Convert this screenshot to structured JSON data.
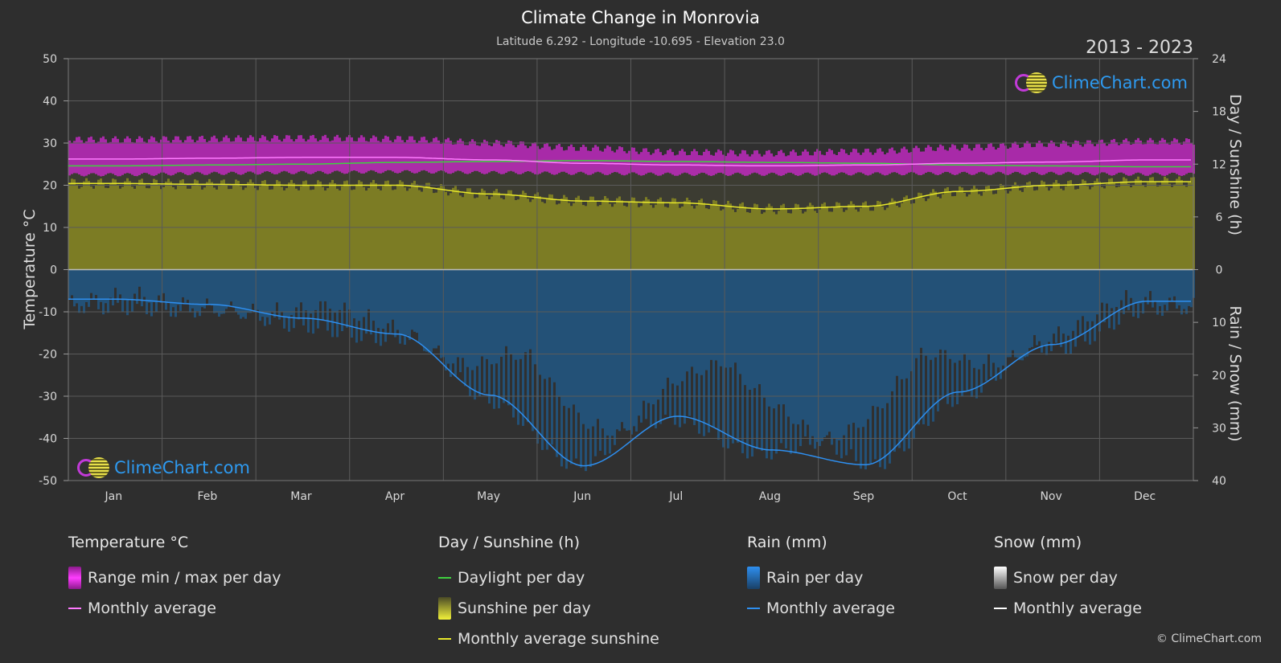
{
  "header": {
    "title": "Climate Change in Monrovia",
    "subtitle": "Latitude 6.292 - Longitude -10.695 - Elevation 23.0",
    "years": "2013 - 2023",
    "logo_text": "ClimeChart.com",
    "copyright": "© ClimeChart.com"
  },
  "colors": {
    "background": "#2e2e2e",
    "temp_range": "#d028d0",
    "temp_avg": "#ff7aff",
    "daylight": "#3fd13f",
    "sunshine_fill": "#8a8a22",
    "sunshine_avg": "#e8e82a",
    "rain_fill": "#1e5f96",
    "rain_avg": "#2e8ff0",
    "snow_avg": "#ffffff"
  },
  "chart_data": {
    "type": "line",
    "title": "Climate Change in Monrovia",
    "categories": [
      "Jan",
      "Feb",
      "Mar",
      "Apr",
      "May",
      "Jun",
      "Jul",
      "Aug",
      "Sep",
      "Oct",
      "Nov",
      "Dec"
    ],
    "left_axis": {
      "label": "Temperature °C",
      "range": [
        -50,
        50
      ],
      "ticks": [
        "50",
        "40",
        "30",
        "20",
        "10",
        "0",
        "-10",
        "-20",
        "-30",
        "-40",
        "-50"
      ]
    },
    "right_axis_top": {
      "label": "Day / Sunshine (h)",
      "range": [
        0,
        24
      ],
      "ticks": [
        "24",
        "18",
        "12",
        "6",
        "0"
      ]
    },
    "right_axis_bottom": {
      "label": "Rain / Snow (mm)",
      "range": [
        0,
        40
      ],
      "ticks": [
        "0",
        "10",
        "20",
        "30",
        "40"
      ]
    },
    "series": [
      {
        "name": "Range min / max per day",
        "axis": "temperature",
        "min": [
          22.5,
          22.8,
          23.0,
          23.2,
          23.0,
          22.8,
          22.6,
          22.6,
          22.7,
          22.8,
          22.8,
          22.6
        ],
        "max": [
          30.8,
          31.0,
          31.2,
          31.0,
          30.0,
          28.8,
          27.8,
          27.6,
          28.0,
          29.0,
          29.8,
          30.4
        ]
      },
      {
        "name": "Monthly average",
        "axis": "temperature",
        "values": [
          26.2,
          26.4,
          26.6,
          26.6,
          26.0,
          25.2,
          24.8,
          24.6,
          24.8,
          25.2,
          25.5,
          26.0
        ]
      },
      {
        "name": "Daylight per day",
        "axis": "sunshine",
        "values": [
          11.8,
          11.9,
          12.0,
          12.2,
          12.3,
          12.4,
          12.3,
          12.2,
          12.1,
          11.9,
          11.8,
          11.7
        ]
      },
      {
        "name": "Monthly average sunshine",
        "axis": "sunshine",
        "values": [
          9.8,
          9.7,
          9.6,
          9.6,
          8.6,
          7.8,
          7.6,
          6.9,
          7.2,
          8.9,
          9.6,
          10.0
        ]
      },
      {
        "name": "Rain monthly average",
        "axis": "rain",
        "values": [
          5.6,
          6.6,
          9.2,
          12.2,
          23.8,
          37.2,
          27.8,
          34.2,
          37.0,
          23.2,
          14.2,
          6.0
        ]
      },
      {
        "name": "Snow monthly average",
        "axis": "rain",
        "values": [
          0,
          0,
          0,
          0,
          0,
          0,
          0,
          0,
          0,
          0,
          0,
          0
        ]
      }
    ]
  },
  "legend": {
    "temperature": {
      "title": "Temperature °C",
      "items": [
        "Range min / max per day",
        "Monthly average"
      ]
    },
    "sunshine": {
      "title": "Day / Sunshine (h)",
      "items": [
        "Daylight per day",
        "Sunshine per day",
        "Monthly average sunshine"
      ]
    },
    "rain": {
      "title": "Rain (mm)",
      "items": [
        "Rain per day",
        "Monthly average"
      ]
    },
    "snow": {
      "title": "Snow (mm)",
      "items": [
        "Snow per day",
        "Monthly average"
      ]
    }
  }
}
